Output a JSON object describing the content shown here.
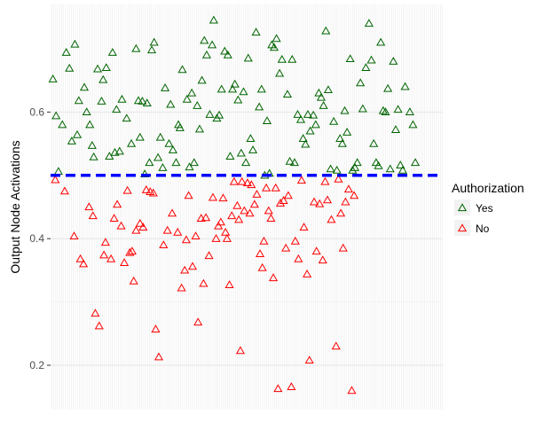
{
  "chart_data": {
    "type": "scatter",
    "title": "",
    "xlabel": "",
    "ylabel": "Output Node Activations",
    "ylim": [
      0.13,
      0.77
    ],
    "xlim": [
      0,
      100
    ],
    "yticks": [
      0.2,
      0.4,
      0.6
    ],
    "ytick_labels": [
      "0.2",
      "0.4",
      "0.6"
    ],
    "threshold": 0.5,
    "threshold_color": "#0000ff",
    "grid": true,
    "marker": "triangle-open",
    "legend": {
      "title": "Authorization",
      "position": "right",
      "entries": [
        {
          "label": "Yes",
          "color": "#006400"
        },
        {
          "label": "No",
          "color": "#ff0000"
        }
      ]
    },
    "series": [
      {
        "name": "Yes",
        "color": "#006400",
        "points": [
          [
            0.6,
            0.652
          ],
          [
            1.4,
            0.594
          ],
          [
            2.0,
            0.506
          ],
          [
            3.0,
            0.58
          ],
          [
            4.0,
            0.694
          ],
          [
            4.8,
            0.669
          ],
          [
            5.4,
            0.554
          ],
          [
            6.2,
            0.707
          ],
          [
            6.8,
            0.564
          ],
          [
            7.2,
            0.618
          ],
          [
            8.6,
            0.639
          ],
          [
            9.2,
            0.6
          ],
          [
            10.0,
            0.58
          ],
          [
            10.6,
            0.547
          ],
          [
            11.0,
            0.529
          ],
          [
            12.0,
            0.668
          ],
          [
            13.0,
            0.617
          ],
          [
            13.4,
            0.651
          ],
          [
            14.2,
            0.67
          ],
          [
            15.0,
            0.53
          ],
          [
            15.8,
            0.694
          ],
          [
            16.4,
            0.536
          ],
          [
            16.8,
            0.604
          ],
          [
            17.6,
            0.538
          ],
          [
            18.2,
            0.62
          ],
          [
            19.4,
            0.59
          ],
          [
            20.6,
            0.55
          ],
          [
            21.8,
            0.7
          ],
          [
            22.4,
            0.618
          ],
          [
            22.8,
            0.56
          ],
          [
            23.4,
            0.617
          ],
          [
            24.0,
            0.502
          ],
          [
            24.6,
            0.614
          ],
          [
            25.2,
            0.52
          ],
          [
            25.8,
            0.698
          ],
          [
            26.4,
            0.71
          ],
          [
            27.4,
            0.528
          ],
          [
            28.0,
            0.56
          ],
          [
            28.6,
            0.512
          ],
          [
            29.2,
            0.638
          ],
          [
            30.2,
            0.55
          ],
          [
            30.6,
            0.612
          ],
          [
            31.2,
            0.54
          ],
          [
            32.0,
            0.52
          ],
          [
            32.6,
            0.58
          ],
          [
            33.0,
            0.575
          ],
          [
            33.6,
            0.667
          ],
          [
            34.8,
            0.62
          ],
          [
            35.4,
            0.513
          ],
          [
            36.0,
            0.63
          ],
          [
            36.6,
            0.52
          ],
          [
            37.4,
            0.61
          ],
          [
            38.0,
            0.573
          ],
          [
            38.6,
            0.65
          ],
          [
            39.2,
            0.713
          ],
          [
            39.8,
            0.69
          ],
          [
            40.6,
            0.596
          ],
          [
            41.2,
            0.706
          ],
          [
            41.6,
            0.745
          ],
          [
            42.4,
            0.59
          ],
          [
            43.0,
            0.595
          ],
          [
            43.6,
            0.636
          ],
          [
            44.4,
            0.696
          ],
          [
            45.2,
            0.69
          ],
          [
            45.8,
            0.53
          ],
          [
            46.4,
            0.636
          ],
          [
            47.0,
            0.644
          ],
          [
            47.8,
            0.619
          ],
          [
            48.6,
            0.535
          ],
          [
            49.2,
            0.632
          ],
          [
            49.8,
            0.52
          ],
          [
            50.4,
            0.685
          ],
          [
            51.0,
            0.558
          ],
          [
            51.6,
            0.54
          ],
          [
            52.4,
            0.726
          ],
          [
            53.2,
            0.608
          ],
          [
            53.8,
            0.636
          ],
          [
            54.6,
            0.5
          ],
          [
            55.2,
            0.586
          ],
          [
            55.8,
            0.503
          ],
          [
            56.4,
            0.706
          ],
          [
            57.0,
            0.702
          ],
          [
            57.6,
            0.716
          ],
          [
            58.4,
            0.661
          ],
          [
            59.0,
            0.683
          ],
          [
            60.4,
            0.628
          ],
          [
            61.0,
            0.522
          ],
          [
            61.6,
            0.683
          ],
          [
            62.2,
            0.52
          ],
          [
            63.0,
            0.596
          ],
          [
            63.8,
            0.588
          ],
          [
            64.4,
            0.558
          ],
          [
            65.0,
            0.549
          ],
          [
            65.6,
            0.596
          ],
          [
            66.2,
            0.57
          ],
          [
            67.0,
            0.595
          ],
          [
            67.6,
            0.58
          ],
          [
            68.4,
            0.63
          ],
          [
            69.0,
            0.623
          ],
          [
            69.6,
            0.61
          ],
          [
            70.2,
            0.728
          ],
          [
            70.8,
            0.635
          ],
          [
            71.4,
            0.51
          ],
          [
            72.2,
            0.585
          ],
          [
            73.0,
            0.508
          ],
          [
            73.8,
            0.558
          ],
          [
            74.4,
            0.55
          ],
          [
            75.0,
            0.602
          ],
          [
            75.6,
            0.568
          ],
          [
            76.4,
            0.684
          ],
          [
            77.0,
            0.508
          ],
          [
            77.6,
            0.512
          ],
          [
            78.2,
            0.52
          ],
          [
            79.0,
            0.646
          ],
          [
            79.6,
            0.605
          ],
          [
            80.4,
            0.67
          ],
          [
            81.2,
            0.74
          ],
          [
            81.8,
            0.682
          ],
          [
            82.4,
            0.55
          ],
          [
            83.0,
            0.52
          ],
          [
            83.6,
            0.515
          ],
          [
            84.2,
            0.71
          ],
          [
            84.8,
            0.602
          ],
          [
            85.4,
            0.6
          ],
          [
            86.0,
            0.637
          ],
          [
            86.6,
            0.51
          ],
          [
            87.4,
            0.68
          ],
          [
            88.0,
            0.572
          ],
          [
            88.6,
            0.604
          ],
          [
            89.2,
            0.516
          ],
          [
            89.8,
            0.508
          ],
          [
            90.4,
            0.64
          ],
          [
            91.6,
            0.6
          ],
          [
            92.4,
            0.58
          ],
          [
            93.0,
            0.52
          ]
        ]
      },
      {
        "name": "No",
        "color": "#ff0000",
        "points": [
          [
            1.2,
            0.493
          ],
          [
            3.6,
            0.475
          ],
          [
            6.0,
            0.404
          ],
          [
            7.6,
            0.368
          ],
          [
            8.4,
            0.36
          ],
          [
            9.8,
            0.45
          ],
          [
            10.8,
            0.436
          ],
          [
            11.4,
            0.282
          ],
          [
            12.4,
            0.262
          ],
          [
            13.6,
            0.374
          ],
          [
            14.0,
            0.394
          ],
          [
            15.4,
            0.368
          ],
          [
            16.2,
            0.432
          ],
          [
            17.0,
            0.454
          ],
          [
            18.0,
            0.42
          ],
          [
            18.8,
            0.362
          ],
          [
            19.6,
            0.476
          ],
          [
            20.2,
            0.378
          ],
          [
            20.8,
            0.38
          ],
          [
            21.2,
            0.333
          ],
          [
            21.8,
            0.413
          ],
          [
            22.8,
            0.424
          ],
          [
            23.6,
            0.418
          ],
          [
            24.4,
            0.477
          ],
          [
            25.4,
            0.474
          ],
          [
            26.2,
            0.472
          ],
          [
            26.8,
            0.257
          ],
          [
            27.6,
            0.213
          ],
          [
            28.8,
            0.39
          ],
          [
            29.8,
            0.413
          ],
          [
            31.0,
            0.44
          ],
          [
            32.4,
            0.41
          ],
          [
            33.4,
            0.322
          ],
          [
            34.2,
            0.35
          ],
          [
            34.6,
            0.398
          ],
          [
            35.2,
            0.468
          ],
          [
            36.2,
            0.356
          ],
          [
            37.0,
            0.404
          ],
          [
            37.6,
            0.268
          ],
          [
            38.4,
            0.432
          ],
          [
            39.0,
            0.329
          ],
          [
            39.6,
            0.433
          ],
          [
            40.4,
            0.373
          ],
          [
            41.4,
            0.465
          ],
          [
            42.2,
            0.4
          ],
          [
            42.8,
            0.42
          ],
          [
            43.4,
            0.426
          ],
          [
            44.0,
            0.464
          ],
          [
            44.6,
            0.41
          ],
          [
            45.0,
            0.4
          ],
          [
            45.6,
            0.327
          ],
          [
            46.2,
            0.436
          ],
          [
            46.8,
            0.49
          ],
          [
            47.6,
            0.452
          ],
          [
            48.0,
            0.43
          ],
          [
            48.4,
            0.223
          ],
          [
            48.8,
            0.49
          ],
          [
            49.4,
            0.444
          ],
          [
            50.2,
            0.488
          ],
          [
            50.8,
            0.44
          ],
          [
            51.2,
            0.485
          ],
          [
            52.0,
            0.454
          ],
          [
            52.6,
            0.47
          ],
          [
            53.4,
            0.376
          ],
          [
            54.0,
            0.354
          ],
          [
            54.4,
            0.396
          ],
          [
            55.0,
            0.48
          ],
          [
            55.6,
            0.444
          ],
          [
            56.2,
            0.432
          ],
          [
            56.8,
            0.338
          ],
          [
            57.4,
            0.48
          ],
          [
            58.0,
            0.163
          ],
          [
            58.6,
            0.456
          ],
          [
            59.4,
            0.46
          ],
          [
            60.0,
            0.385
          ],
          [
            60.6,
            0.468
          ],
          [
            61.4,
            0.166
          ],
          [
            62.4,
            0.396
          ],
          [
            63.2,
            0.368
          ],
          [
            64.0,
            0.492
          ],
          [
            64.6,
            0.418
          ],
          [
            65.4,
            0.344
          ],
          [
            66.0,
            0.208
          ],
          [
            67.2,
            0.458
          ],
          [
            67.8,
            0.38
          ],
          [
            68.6,
            0.455
          ],
          [
            69.4,
            0.366
          ],
          [
            70.0,
            0.49
          ],
          [
            70.6,
            0.461
          ],
          [
            71.6,
            0.43
          ],
          [
            72.8,
            0.23
          ],
          [
            73.4,
            0.494
          ],
          [
            74.0,
            0.44
          ],
          [
            74.6,
            0.385
          ],
          [
            75.2,
            0.458
          ],
          [
            76.0,
            0.478
          ],
          [
            76.8,
            0.16
          ],
          [
            77.4,
            0.468
          ]
        ]
      }
    ]
  }
}
